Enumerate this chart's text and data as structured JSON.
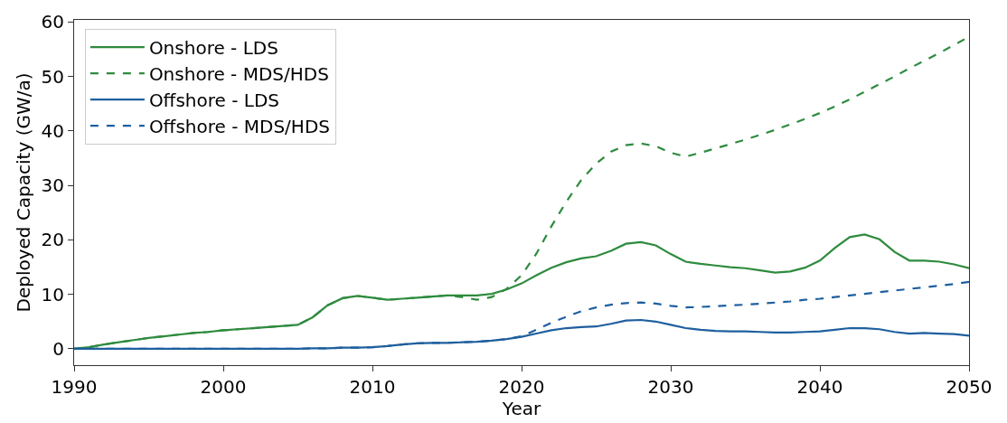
{
  "chart_data": {
    "type": "line",
    "xlabel": "Year",
    "ylabel": "Deployed Capacity (GW/a)",
    "x": [
      1990,
      1991,
      1992,
      1993,
      1994,
      1995,
      1996,
      1997,
      1998,
      1999,
      2000,
      2001,
      2002,
      2003,
      2004,
      2005,
      2006,
      2007,
      2008,
      2009,
      2010,
      2011,
      2012,
      2013,
      2014,
      2015,
      2016,
      2017,
      2018,
      2019,
      2020,
      2021,
      2022,
      2023,
      2024,
      2025,
      2026,
      2027,
      2028,
      2029,
      2030,
      2031,
      2032,
      2033,
      2034,
      2035,
      2036,
      2037,
      2038,
      2039,
      2040,
      2041,
      2042,
      2043,
      2044,
      2045,
      2046,
      2047,
      2048,
      2049,
      2050
    ],
    "series": [
      {
        "name": "Onshore - LDS",
        "color": "#2e8b3e",
        "line_style": "solid",
        "values": [
          0,
          0.3,
          0.8,
          1.2,
          1.6,
          2.0,
          2.3,
          2.6,
          2.9,
          3.1,
          3.4,
          3.6,
          3.8,
          4.0,
          4.2,
          4.4,
          5.8,
          8.0,
          9.3,
          9.7,
          9.4,
          9.0,
          9.2,
          9.4,
          9.6,
          9.8,
          9.8,
          9.8,
          10.1,
          10.9,
          12.0,
          13.5,
          14.9,
          15.9,
          16.6,
          17.0,
          18.0,
          19.3,
          19.6,
          19.0,
          17.4,
          16.0,
          15.6,
          15.3,
          15.0,
          14.8,
          14.4,
          14.0,
          14.2,
          14.9,
          16.2,
          18.5,
          20.5,
          21.0,
          20.1,
          17.8,
          16.2,
          16.2,
          16.0,
          15.5,
          14.8
        ]
      },
      {
        "name": "Onshore - MDS/HDS",
        "color": "#2e8b3e",
        "line_style": "dashed",
        "values": [
          0,
          0.3,
          0.8,
          1.2,
          1.6,
          2.0,
          2.3,
          2.6,
          2.9,
          3.1,
          3.4,
          3.6,
          3.8,
          4.0,
          4.2,
          4.4,
          5.8,
          8.0,
          9.3,
          9.7,
          9.4,
          9.0,
          9.2,
          9.4,
          9.6,
          9.8,
          9.5,
          9.0,
          9.5,
          11.0,
          13.5,
          17.5,
          22.5,
          27.0,
          31.0,
          34.0,
          36.2,
          37.4,
          37.7,
          37.2,
          36.0,
          35.3,
          36.0,
          36.8,
          37.6,
          38.4,
          39.3,
          40.2,
          41.2,
          42.2,
          43.3,
          44.5,
          45.8,
          47.2,
          48.6,
          50.0,
          51.5,
          52.9,
          54.3,
          55.8,
          57.3
        ]
      },
      {
        "name": "Offshore - LDS",
        "color": "#1f5f9e",
        "line_style": "solid",
        "values": [
          0,
          0,
          0,
          0,
          0,
          0,
          0,
          0,
          0,
          0,
          0,
          0,
          0,
          0,
          0,
          0,
          0.1,
          0.1,
          0.2,
          0.2,
          0.3,
          0.5,
          0.8,
          1.0,
          1.1,
          1.1,
          1.2,
          1.3,
          1.5,
          1.8,
          2.2,
          2.8,
          3.4,
          3.8,
          4.0,
          4.1,
          4.6,
          5.2,
          5.3,
          5.0,
          4.4,
          3.8,
          3.5,
          3.3,
          3.2,
          3.2,
          3.1,
          3.0,
          3.0,
          3.1,
          3.2,
          3.5,
          3.8,
          3.8,
          3.6,
          3.1,
          2.8,
          2.9,
          2.8,
          2.7,
          2.4
        ]
      },
      {
        "name": "Offshore - MDS/HDS",
        "color": "#1f5f9e",
        "line_style": "dashed",
        "values": [
          0,
          0,
          0,
          0,
          0,
          0,
          0,
          0,
          0,
          0,
          0,
          0,
          0,
          0,
          0,
          0,
          0.1,
          0.1,
          0.2,
          0.2,
          0.3,
          0.5,
          0.8,
          1.0,
          1.1,
          1.1,
          1.2,
          1.3,
          1.5,
          1.8,
          2.3,
          3.5,
          4.8,
          5.9,
          6.9,
          7.6,
          8.1,
          8.4,
          8.5,
          8.3,
          7.9,
          7.6,
          7.7,
          7.8,
          8.0,
          8.1,
          8.3,
          8.5,
          8.7,
          9.0,
          9.2,
          9.5,
          9.8,
          10.1,
          10.4,
          10.7,
          11.0,
          11.3,
          11.6,
          11.9,
          12.3
        ]
      }
    ],
    "xlim": [
      1990,
      2050
    ],
    "xticks": [
      1990,
      2000,
      2010,
      2020,
      2030,
      2040,
      2050
    ],
    "ylim": [
      -3,
      60.4
    ],
    "yticks": [
      0,
      10,
      20,
      30,
      40,
      50,
      60
    ],
    "legend": "top left",
    "marker": "none"
  }
}
